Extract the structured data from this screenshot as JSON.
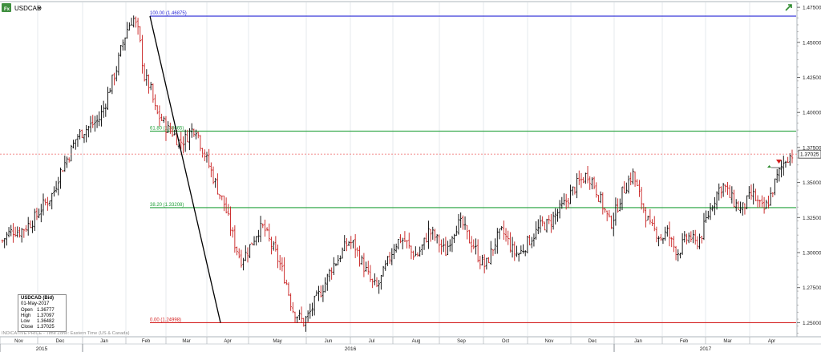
{
  "header": {
    "instrument": "USDCAD",
    "menu_icon": "dropdown-arrow-icon",
    "logo_icon": "fx-logo-icon",
    "expand_icon": "expand-arrow-icon"
  },
  "info_box": {
    "title": "USDCAD (Bid)",
    "date": "01-May-2017",
    "open_label": "Open",
    "open": "1.36777",
    "high_label": "High",
    "high": "1.37097",
    "low_label": "Low",
    "low": "1.36482",
    "close_label": "Close",
    "close": "1.37025"
  },
  "footer": {
    "disclaimer": "INDICATIVE PRICE - Time Zone: Eastern Time (US & Canada)"
  },
  "colors": {
    "up_bar": "#000000",
    "down_bar": "#c81e1e",
    "level_100": "#2b2bd6",
    "level_618": "#22a03a",
    "level_382": "#22a03a",
    "level_0": "#d42020",
    "trend_line": "#000000",
    "price_marker": "#f07a7a"
  },
  "chart_data": {
    "type": "ohlc",
    "instrument": "USDCAD",
    "x_axis": {
      "years": [
        "2015",
        "2016",
        "2017"
      ],
      "months": [
        "Nov",
        "Dec",
        "Jan",
        "Feb",
        "Mar",
        "Apr",
        "May",
        "Jun",
        "Jul",
        "Aug",
        "Sep",
        "Oct",
        "Nov",
        "Dec",
        "Jan",
        "Feb",
        "Mar",
        "Apr"
      ]
    },
    "y_axis": {
      "ticks": [
        "1.47500",
        "1.45000",
        "1.42500",
        "1.40000",
        "1.37500",
        "1.35000",
        "1.32500",
        "1.30000",
        "1.27500",
        "1.25000"
      ],
      "range": [
        1.2405,
        1.4785
      ]
    },
    "last_price": "1.37025",
    "fibonacci": {
      "levels": [
        {
          "label": "100.00 (1.46875)",
          "value": 1.46875
        },
        {
          "label": "61.80 (1.38665)",
          "value": 1.38665
        },
        {
          "label": "38.20 (1.33208)",
          "value": 1.33208
        },
        {
          "label": "0.00 (1.24998)",
          "value": 1.24998
        }
      ]
    },
    "trend_line": {
      "from": 1.46875,
      "to": 1.24998
    },
    "price_path_weekly_close": [
      1.3085,
      1.3135,
      1.316,
      1.315,
      1.318,
      1.3215,
      1.326,
      1.333,
      1.337,
      1.343,
      1.356,
      1.364,
      1.372,
      1.382,
      1.386,
      1.389,
      1.392,
      1.395,
      1.405,
      1.419,
      1.43,
      1.447,
      1.46,
      1.468,
      1.456,
      1.425,
      1.418,
      1.4,
      1.395,
      1.388,
      1.386,
      1.379,
      1.38,
      1.386,
      1.39,
      1.376,
      1.366,
      1.355,
      1.344,
      1.335,
      1.32,
      1.305,
      1.295,
      1.3,
      1.308,
      1.316,
      1.318,
      1.308,
      1.3,
      1.29,
      1.278,
      1.26,
      1.255,
      1.25,
      1.256,
      1.265,
      1.272,
      1.28,
      1.29,
      1.295,
      1.302,
      1.308,
      1.305,
      1.295,
      1.287,
      1.278,
      1.275,
      1.285,
      1.295,
      1.305,
      1.31,
      1.308,
      1.3,
      1.298,
      1.305,
      1.315,
      1.312,
      1.306,
      1.3,
      1.312,
      1.32,
      1.32,
      1.31,
      1.305,
      1.295,
      1.29,
      1.3,
      1.31,
      1.315,
      1.308,
      1.3,
      1.299,
      1.305,
      1.31,
      1.315,
      1.32,
      1.32,
      1.325,
      1.33,
      1.335,
      1.342,
      1.348,
      1.352,
      1.356,
      1.35,
      1.34,
      1.33,
      1.32,
      1.33,
      1.342,
      1.35,
      1.356,
      1.342,
      1.33,
      1.318,
      1.315,
      1.31,
      1.315,
      1.305,
      1.3,
      1.308,
      1.312,
      1.306,
      1.312,
      1.325,
      1.335,
      1.345,
      1.348,
      1.34,
      1.335,
      1.33,
      1.336,
      1.342,
      1.335,
      1.33,
      1.338,
      1.35,
      1.36,
      1.368,
      1.3702
    ]
  }
}
